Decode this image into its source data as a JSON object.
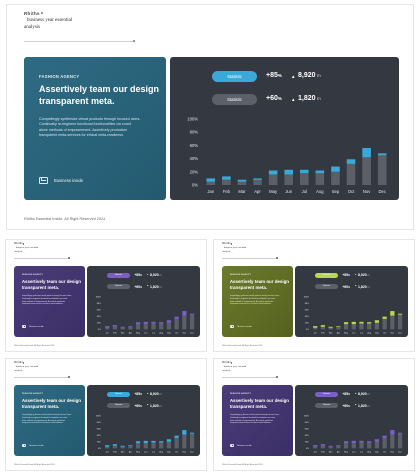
{
  "header": {
    "brand": "Rhiths",
    "subtitle_line1": "business year essential",
    "subtitle_line2": "analysis"
  },
  "card": {
    "tag": "FASHION AGENCY",
    "headline_line1": "Assertively team our design",
    "headline_line2": "transparent meta.",
    "body_line1": "Compellingly synthesize virtual products through focused users.",
    "body_line2": "Continually re-engineer functional functionalities via smart",
    "body_line3": "alone methods of empowerment. Assertively productize",
    "body_line4": "transparent meta-services for ethical meta-readiness.",
    "business_label": "Business inside",
    "envelope_icon": "envelope-icon"
  },
  "stats": [
    {
      "pill": "Statistic",
      "percent": "+85",
      "pct_suffix": "%",
      "arrow": "▲",
      "value": "8,920",
      "unit": "m"
    },
    {
      "pill": "Statistic",
      "percent": "+60",
      "pct_suffix": "%",
      "arrow": "▲",
      "value": "1,820",
      "unit": "m"
    }
  ],
  "footer": "Rhiths Essential Inside. All Right Reserved 2024",
  "chart_data": {
    "type": "bar",
    "stacked": true,
    "categories": [
      "Jan",
      "Feb",
      "Mar",
      "Apr",
      "May",
      "Jun",
      "Jul",
      "Aug",
      "Sep",
      "Oct",
      "Nov",
      "Dec"
    ],
    "series": [
      {
        "values": [
          5,
          8,
          5,
          8,
          16,
          16,
          18,
          18,
          20,
          32,
          42,
          45
        ]
      },
      {
        "values": [
          5,
          5,
          3,
          2,
          6,
          7,
          5,
          4,
          8,
          7,
          14,
          3
        ]
      }
    ],
    "yticks": [
      "0%",
      "20%",
      "40%",
      "60%",
      "80%",
      "100%"
    ],
    "ylim": [
      0,
      100
    ],
    "grid": false,
    "legend": "none"
  },
  "themes": {
    "main": {
      "card_bg": "#2e6b83",
      "card_bg2": "#245a70",
      "accent": "#3aa9d8",
      "second_pill": "#5c6068",
      "base_bar": "#5b5f68"
    },
    "purple": {
      "card_bg": "#4a3c7a",
      "card_bg2": "#3b2f66",
      "accent": "#7b5fc7",
      "second_pill": "#5c6068",
      "base_bar": "#5b5f68"
    },
    "olive": {
      "card_bg": "#6b7a2c",
      "card_bg2": "#55621f",
      "accent": "#b8d94a",
      "second_pill": "#5c6068",
      "base_bar": "#5b5f68"
    },
    "teal": {
      "card_bg": "#2e6b83",
      "card_bg2": "#245a70",
      "accent": "#3aa9d8",
      "second_pill": "#5c6068",
      "base_bar": "#5b5f68"
    }
  }
}
